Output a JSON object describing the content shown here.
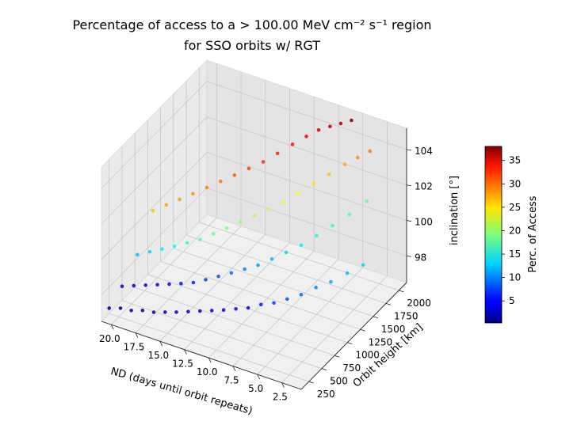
{
  "chart_data": {
    "type": "scatter",
    "projection": "3d",
    "title_line1": "Percentage of access to a > 100.00 MeV cm⁻² s⁻¹ region",
    "title_line2": "for SSO orbits w/ RGT",
    "xlabel": "ND (days until orbit repeats)",
    "ylabel": "Orbit height [km]",
    "zlabel": "inclination [°]",
    "colorbar_label": "Perc. of Access",
    "colormap": "jet",
    "color_range": [
      0.3,
      38
    ],
    "x_ticks": [
      "20.0",
      "17.5",
      "15.0",
      "12.5",
      "10.0",
      "7.5",
      "5.0",
      "2.5"
    ],
    "x_tick_values": [
      20,
      17.5,
      15,
      12.5,
      10,
      7.5,
      5,
      2.5
    ],
    "y_ticks": [
      "250",
      "500",
      "750",
      "1000",
      "1250",
      "1500",
      "1750",
      "2000"
    ],
    "y_tick_values": [
      250,
      500,
      750,
      1000,
      1250,
      1500,
      1750,
      2000
    ],
    "z_ticks": [
      "98",
      "100",
      "102",
      "104"
    ],
    "z_tick_values": [
      98,
      100,
      102,
      104
    ],
    "colorbar_ticks": [
      "5",
      "10",
      "15",
      "20",
      "25",
      "30",
      "35"
    ],
    "colorbar_tick_values": [
      5,
      10,
      15,
      20,
      25,
      30,
      35
    ],
    "xlim": [
      0.5,
      21
    ],
    "ylim": [
      100,
      2150
    ],
    "zlim": [
      96.5,
      105.2
    ],
    "grid": true,
    "series": [
      {
        "x": [
          21,
          20,
          19,
          18,
          17,
          16,
          15,
          14,
          13,
          12,
          11,
          10,
          9,
          8,
          7,
          6,
          5,
          4,
          3,
          2,
          1
        ],
        "y": [
          250,
          280,
          300,
          330,
          360,
          390,
          420,
          460,
          500,
          540,
          580,
          630,
          680,
          740,
          800,
          870,
          950,
          1050,
          1150,
          1280,
          1400
        ],
        "z": [
          96.8,
          96.9,
          96.9,
          97.0,
          97.0,
          97.1,
          97.2,
          97.3,
          97.4,
          97.5,
          97.6,
          97.7,
          97.8,
          98.0,
          98.1,
          98.3,
          98.5,
          98.8,
          99.0,
          99.3,
          99.6
        ],
        "c": [
          0.5,
          0.8,
          1.0,
          1.2,
          1.5,
          1.8,
          2.0,
          2.5,
          3.0,
          3.5,
          4.0,
          4.5,
          5.0,
          6.0,
          7.0,
          8.0,
          9.0,
          10.0,
          11.0,
          12.0,
          13.0
        ]
      },
      {
        "x": [
          21,
          20,
          19,
          18,
          17,
          16,
          15,
          14,
          13,
          12,
          11,
          10,
          9,
          8,
          7,
          6,
          5,
          4,
          3
        ],
        "y": [
          500,
          540,
          580,
          620,
          660,
          700,
          750,
          800,
          860,
          920,
          990,
          1060,
          1140,
          1230,
          1330,
          1440,
          1560,
          1700,
          1850
        ],
        "z": [
          97.3,
          97.4,
          97.5,
          97.6,
          97.7,
          97.8,
          97.9,
          98.1,
          98.3,
          98.5,
          98.7,
          98.9,
          99.2,
          99.5,
          99.8,
          100.2,
          100.6,
          101.0,
          101.5
        ],
        "c": [
          3,
          3.5,
          4,
          4.5,
          5,
          5.5,
          6,
          7,
          8,
          9,
          10,
          11,
          12,
          13,
          14,
          15,
          16,
          17,
          18
        ]
      },
      {
        "x": [
          21,
          20,
          19,
          18,
          17,
          16,
          15,
          14,
          13,
          12,
          11,
          10,
          9,
          8,
          7,
          6,
          5,
          4
        ],
        "y": [
          800,
          850,
          900,
          950,
          1010,
          1070,
          1140,
          1210,
          1290,
          1370,
          1460,
          1550,
          1650,
          1760,
          1870,
          1990,
          2050,
          2100
        ],
        "z": [
          98.2,
          98.4,
          98.6,
          98.8,
          99.0,
          99.2,
          99.5,
          99.8,
          100.1,
          100.4,
          100.7,
          101.0,
          101.4,
          101.8,
          102.2,
          102.6,
          103.0,
          103.4
        ],
        "c": [
          12,
          13,
          14,
          15,
          16,
          17,
          18,
          19,
          20,
          21,
          22,
          23,
          24,
          25,
          26,
          27,
          28,
          29
        ]
      },
      {
        "x": [
          21,
          20,
          19,
          18,
          17,
          16,
          15,
          14,
          13,
          12,
          11,
          10,
          9,
          8,
          7,
          6
        ],
        "y": [
          1100,
          1170,
          1240,
          1310,
          1390,
          1470,
          1550,
          1640,
          1730,
          1820,
          1920,
          2000,
          2050,
          2080,
          2100,
          2120
        ],
        "z": [
          99.8,
          100.1,
          100.4,
          100.7,
          101.0,
          101.3,
          101.6,
          101.9,
          102.2,
          102.6,
          103.0,
          103.4,
          103.8,
          104.1,
          104.4,
          104.7
        ],
        "c": [
          26,
          27,
          27.5,
          28,
          28.5,
          29,
          30,
          31,
          31.5,
          32,
          33,
          34,
          35,
          36,
          37,
          38
        ]
      }
    ]
  }
}
